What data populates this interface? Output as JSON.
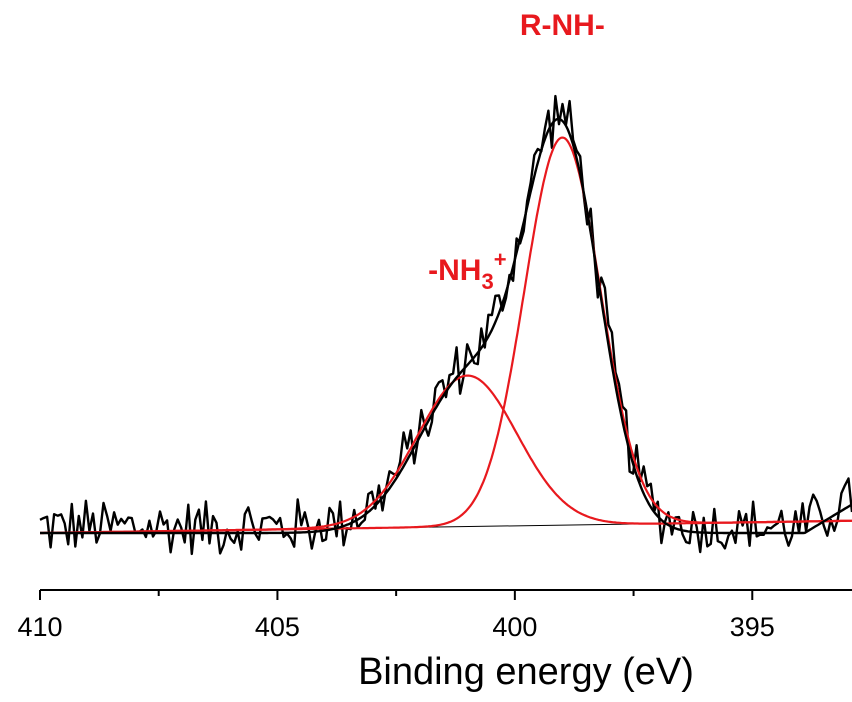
{
  "chart_data": {
    "type": "line",
    "title": "",
    "xlabel": "Binding energy (eV)",
    "ylabel": "",
    "x_reversed": true,
    "xlim": [
      410,
      392.9
    ],
    "x_ticks": [
      410,
      405,
      400,
      395
    ],
    "x_minor_ticks": [
      407.5,
      402.5,
      397.5
    ],
    "y_axis_visible": false,
    "grid": false,
    "colors": {
      "raw": "#000000",
      "envelope": "#000000",
      "component": "#e8191e",
      "baseline": "#000000",
      "annotation": "#e8191e"
    },
    "baseline": {
      "x": [
        410,
        392.9
      ],
      "y": [
        0.0,
        0.03
      ]
    },
    "components": [
      {
        "center": 401.0,
        "amplitude": 0.37,
        "sigma": 1.05
      },
      {
        "center": 399.0,
        "amplitude": 0.95,
        "sigma": 0.8
      }
    ],
    "tail": {
      "x": [
        393.9,
        392.9
      ],
      "y": [
        0.0,
        0.07
      ]
    },
    "annotations": [
      {
        "text": "R-NH-",
        "x": 399.0,
        "y": 1.22
      },
      {
        "text": "-NH",
        "subscript": "3",
        "superscript": "+",
        "x": 401.0,
        "y": 0.62
      }
    ],
    "raw_noise_amplitude": 0.045,
    "raw_points": 230
  }
}
